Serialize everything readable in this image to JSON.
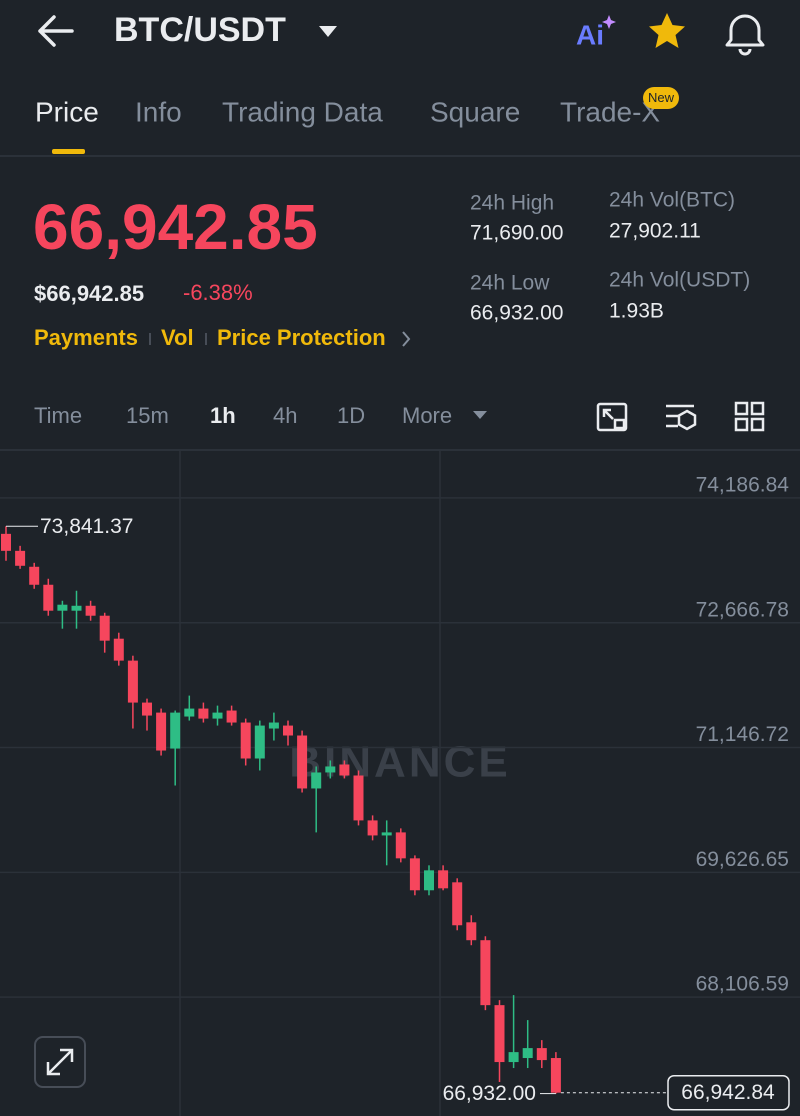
{
  "header": {
    "pair": "BTC/USDT",
    "ai": "Ai"
  },
  "tabs": [
    "Price",
    "Info",
    "Trading Data",
    "Square",
    "Trade-X"
  ],
  "tab_badge": "New",
  "price": {
    "last": "66,942.85",
    "usd": "$66,942.85",
    "change": "-6.38%"
  },
  "links": [
    "Payments",
    "Vol",
    "Price Protection"
  ],
  "stats": [
    {
      "label": "24h High",
      "value": "71,690.00"
    },
    {
      "label": "24h Vol(BTC)",
      "value": "27,902.11"
    },
    {
      "label": "24h Low",
      "value": "66,932.00"
    },
    {
      "label": "24h Vol(USDT)",
      "value": "1.93B"
    }
  ],
  "intervals": [
    "Time",
    "15m",
    "1h",
    "4h",
    "1D",
    "More"
  ],
  "chart_data": {
    "type": "candlestick",
    "up_color": "#2ebd85",
    "down_color": "#f6465d",
    "watermark": "BINANCE",
    "ylim": [
      66659,
      74758
    ],
    "yticks": [
      {
        "value": 74186.84,
        "label": "74,186.84"
      },
      {
        "value": 72666.78,
        "label": "72,666.78"
      },
      {
        "value": 71146.72,
        "label": "71,146.72"
      },
      {
        "value": 69626.65,
        "label": "69,626.65"
      },
      {
        "value": 68106.59,
        "label": "68,106.59"
      }
    ],
    "high_label": {
      "value": 73841.37,
      "label": "73,841.37"
    },
    "low_label": {
      "value": 66932,
      "label": "66,932.00"
    },
    "last_label": {
      "value": 66942.84,
      "label": "66,942.84"
    },
    "candles": [
      {
        "open": 73749,
        "high": 73841.37,
        "low": 73421,
        "close": 73542
      },
      {
        "open": 73542,
        "high": 73603,
        "low": 73323,
        "close": 73360
      },
      {
        "open": 73348,
        "high": 73396,
        "low": 73080,
        "close": 73129
      },
      {
        "open": 73129,
        "high": 73202,
        "low": 72752,
        "close": 72813
      },
      {
        "open": 72813,
        "high": 72934,
        "low": 72594,
        "close": 72886
      },
      {
        "open": 72813,
        "high": 73056,
        "low": 72594,
        "close": 72873
      },
      {
        "open": 72873,
        "high": 72934,
        "low": 72691,
        "close": 72752
      },
      {
        "open": 72752,
        "high": 72788,
        "low": 72302,
        "close": 72448
      },
      {
        "open": 72472,
        "high": 72545,
        "low": 72144,
        "close": 72205
      },
      {
        "open": 72205,
        "high": 72265,
        "low": 71378,
        "close": 71694
      },
      {
        "open": 71694,
        "high": 71742,
        "low": 71353,
        "close": 71536
      },
      {
        "open": 71572,
        "high": 71621,
        "low": 71049,
        "close": 71110
      },
      {
        "open": 71134,
        "high": 71597,
        "low": 70684,
        "close": 71572
      },
      {
        "open": 71524,
        "high": 71779,
        "low": 71475,
        "close": 71621
      },
      {
        "open": 71621,
        "high": 71694,
        "low": 71451,
        "close": 71499
      },
      {
        "open": 71499,
        "high": 71657,
        "low": 71414,
        "close": 71572
      },
      {
        "open": 71597,
        "high": 71657,
        "low": 71414,
        "close": 71451
      },
      {
        "open": 71451,
        "high": 71499,
        "low": 70928,
        "close": 71013
      },
      {
        "open": 71013,
        "high": 71475,
        "low": 70867,
        "close": 71414
      },
      {
        "open": 71378,
        "high": 71572,
        "low": 71232,
        "close": 71451
      },
      {
        "open": 71414,
        "high": 71475,
        "low": 71171,
        "close": 71293
      },
      {
        "open": 71293,
        "high": 71353,
        "low": 70599,
        "close": 70648
      },
      {
        "open": 70648,
        "high": 70916,
        "low": 70113,
        "close": 70843
      },
      {
        "open": 70843,
        "high": 70989,
        "low": 70770,
        "close": 70916
      },
      {
        "open": 70940,
        "high": 70989,
        "low": 70770,
        "close": 70806
      },
      {
        "open": 70806,
        "high": 70867,
        "low": 70198,
        "close": 70259
      },
      {
        "open": 70259,
        "high": 70320,
        "low": 70016,
        "close": 70076
      },
      {
        "open": 70076,
        "high": 70259,
        "low": 69712,
        "close": 70113
      },
      {
        "open": 70113,
        "high": 70162,
        "low": 69748,
        "close": 69797
      },
      {
        "open": 69797,
        "high": 69833,
        "low": 69347,
        "close": 69408
      },
      {
        "open": 69408,
        "high": 69712,
        "low": 69347,
        "close": 69651
      },
      {
        "open": 69651,
        "high": 69712,
        "low": 69408,
        "close": 69432
      },
      {
        "open": 69505,
        "high": 69554,
        "low": 68921,
        "close": 68982
      },
      {
        "open": 69018,
        "high": 69104,
        "low": 68739,
        "close": 68800
      },
      {
        "open": 68800,
        "high": 68848,
        "low": 67948,
        "close": 68009
      },
      {
        "open": 68009,
        "high": 68070,
        "low": 67073,
        "close": 67316
      },
      {
        "open": 67316,
        "high": 68131,
        "low": 67243,
        "close": 67437
      },
      {
        "open": 67365,
        "high": 67827,
        "low": 67243,
        "close": 67486
      },
      {
        "open": 67486,
        "high": 67583,
        "low": 67243,
        "close": 67340
      },
      {
        "open": 67365,
        "high": 67437,
        "low": 66932,
        "close": 66942.84
      }
    ]
  }
}
